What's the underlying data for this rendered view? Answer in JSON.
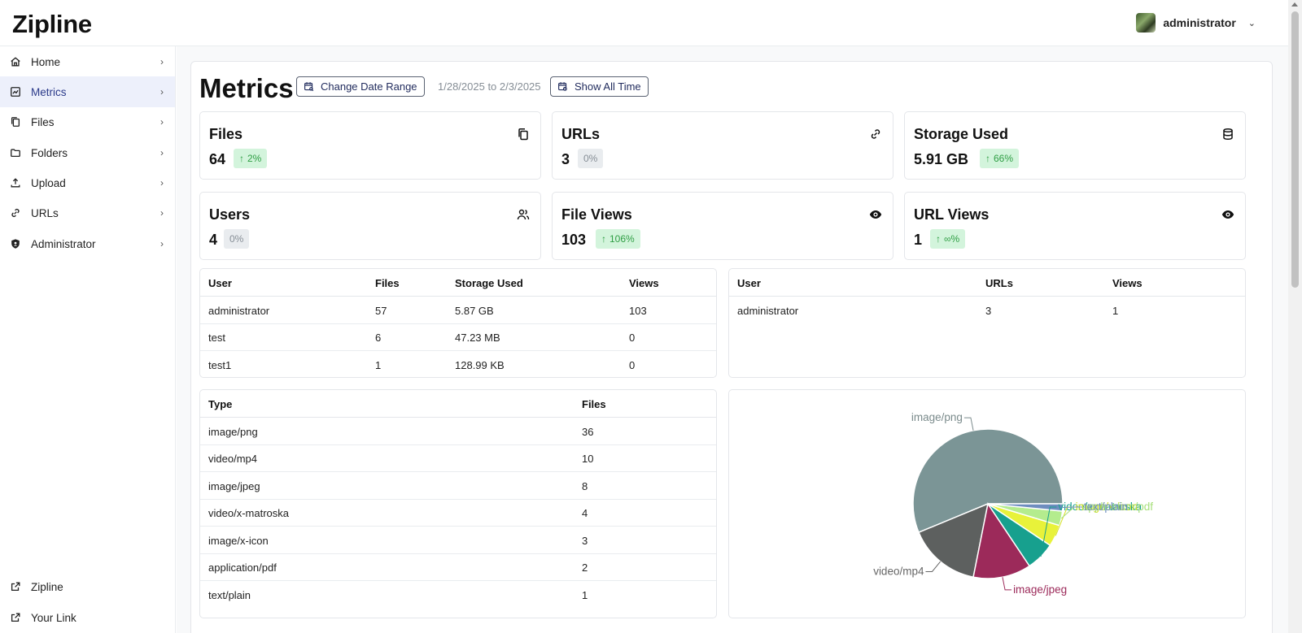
{
  "app": {
    "title": "Zipline"
  },
  "user": {
    "name": "administrator"
  },
  "sidebar": {
    "items": [
      {
        "label": "Home",
        "icon": "home-icon"
      },
      {
        "label": "Metrics",
        "icon": "chart-icon"
      },
      {
        "label": "Files",
        "icon": "files-icon"
      },
      {
        "label": "Folders",
        "icon": "folder-icon"
      },
      {
        "label": "Upload",
        "icon": "upload-icon"
      },
      {
        "label": "URLs",
        "icon": "link-icon"
      },
      {
        "label": "Administrator",
        "icon": "shield-icon"
      }
    ],
    "bottom": [
      {
        "label": "Zipline",
        "icon": "external-link-icon"
      },
      {
        "label": "Your Link",
        "icon": "external-link-icon"
      }
    ]
  },
  "metrics": {
    "title": "Metrics",
    "change_range_label": "Change Date Range",
    "date_range": "1/28/2025 to 2/3/2025",
    "show_all_label": "Show All Time"
  },
  "cards": [
    {
      "title": "Files",
      "value": "64",
      "badge": "2%",
      "trend": "up",
      "icon": "copy-icon"
    },
    {
      "title": "URLs",
      "value": "3",
      "badge": "0%",
      "trend": "flat",
      "icon": "link-icon"
    },
    {
      "title": "Storage Used",
      "value": "5.91 GB",
      "badge": "66%",
      "trend": "up",
      "icon": "database-icon"
    },
    {
      "title": "Users",
      "value": "4",
      "badge": "0%",
      "trend": "flat",
      "icon": "users-icon"
    },
    {
      "title": "File Views",
      "value": "103",
      "badge": "106%",
      "trend": "up",
      "icon": "eye-icon"
    },
    {
      "title": "URL Views",
      "value": "1",
      "badge": "∞%",
      "trend": "up",
      "icon": "eye-icon"
    }
  ],
  "user_files_table": {
    "headers": [
      "User",
      "Files",
      "Storage Used",
      "Views"
    ],
    "rows": [
      [
        "administrator",
        "57",
        "5.87 GB",
        "103"
      ],
      [
        "test",
        "6",
        "47.23 MB",
        "0"
      ],
      [
        "test1",
        "1",
        "128.99 KB",
        "0"
      ]
    ]
  },
  "user_urls_table": {
    "headers": [
      "User",
      "URLs",
      "Views"
    ],
    "rows": [
      [
        "administrator",
        "3",
        "1"
      ]
    ]
  },
  "types_table": {
    "headers": [
      "Type",
      "Files"
    ],
    "rows": [
      [
        "image/png",
        "36"
      ],
      [
        "video/mp4",
        "10"
      ],
      [
        "image/jpeg",
        "8"
      ],
      [
        "video/x-matroska",
        "4"
      ],
      [
        "image/x-icon",
        "3"
      ],
      [
        "application/pdf",
        "2"
      ],
      [
        "text/plain",
        "1"
      ]
    ]
  },
  "chart_data": {
    "type": "pie",
    "categories": [
      "image/png",
      "video/mp4",
      "image/jpeg",
      "video/x-matroska",
      "image/x-icon",
      "application/pdf",
      "text/plain"
    ],
    "values": [
      36,
      10,
      8,
      4,
      3,
      2,
      1
    ],
    "colors": [
      "#7b9596",
      "#5d605f",
      "#9c2a5a",
      "#17a08e",
      "#e8f23a",
      "#b4ec8e",
      "#6e8dbf"
    ],
    "label_colors": [
      "#7b8b8c",
      "#666666",
      "#9c2a5a",
      "#17a08e",
      "#d6e026",
      "#a8e07c",
      "#6e8dbf"
    ],
    "legend": "none"
  }
}
